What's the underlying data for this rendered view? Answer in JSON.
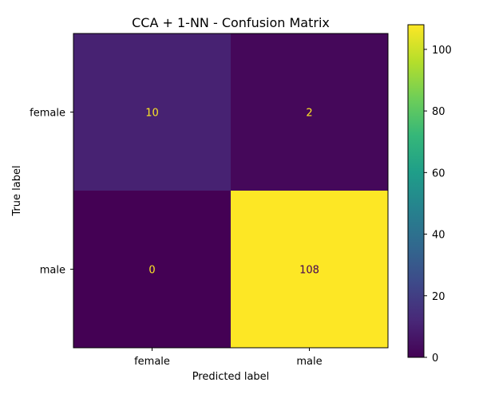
{
  "chart_data": {
    "type": "heatmap",
    "title": "CCA + 1-NN - Confusion Matrix",
    "xlabel": "Predicted label",
    "ylabel": "True label",
    "x_categories": [
      "female",
      "male"
    ],
    "y_categories": [
      "female",
      "male"
    ],
    "values": [
      [
        10,
        2
      ],
      [
        0,
        108
      ]
    ],
    "colormap": "viridis",
    "colorbar": {
      "vmin": 0,
      "vmax": 108,
      "ticks": [
        0,
        20,
        40,
        60,
        80,
        100
      ],
      "tick_labels": [
        "0",
        "20",
        "40",
        "60",
        "80",
        "100"
      ]
    },
    "text_color_low": "#fde725",
    "text_color_high": "#440154",
    "grid": false
  }
}
